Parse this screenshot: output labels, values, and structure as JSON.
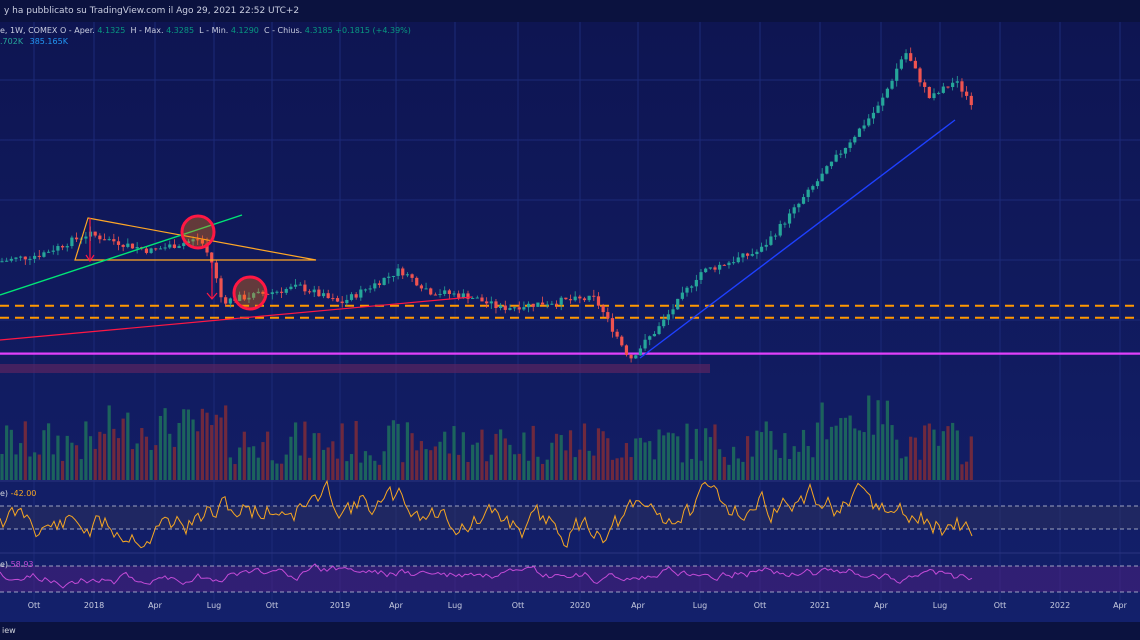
{
  "header": {
    "publish_line": "y ha pubblicato su TradingView.com il Ago 29, 2021 22:52 UTC+2",
    "symbol_line_prefix": "e, 1W, COMEX  O - Aper.",
    "open": "4.1325",
    "high_label": "H - Max.",
    "high": "4.3285",
    "low_label": "L - Min.",
    "low": "4.1290",
    "close_label": "C - Chius.",
    "close": "4.3185",
    "change": "+0.1815 (+4.39%)",
    "volume_a": ".702K",
    "volume_b": "385.165K"
  },
  "oscillators": {
    "osc1_name": "e)",
    "osc1_value": "-42.00",
    "osc2_name": "e)",
    "osc2_value": "58.93"
  },
  "footer": {
    "brand": "iew"
  },
  "colors": {
    "background": "#0f1a5a",
    "bull": "#26a69a",
    "bear": "#ef5350",
    "orange_dashed": "#ff9800",
    "magenta_line": "#e040fb",
    "triangle": "#ffa726",
    "green_trend": "#00e676",
    "red_trend": "#ff1744",
    "blue_trend": "#1e40ff",
    "osc1_line": "#f5a623",
    "osc2_line": "#c24bd6"
  },
  "chart_data": {
    "type": "candlestick",
    "timeframe": "1W",
    "exchange": "COMEX",
    "x_tick_labels": [
      "Ott",
      "2018",
      "Apr",
      "Lug",
      "Ott",
      "2019",
      "Apr",
      "Lug",
      "Ott",
      "2020",
      "Apr",
      "Lug",
      "Ott",
      "2021",
      "Apr",
      "Lug",
      "Ott",
      "2022",
      "Apr"
    ],
    "price_path": [
      {
        "x": 0,
        "y": 2.99
      },
      {
        "x": 40,
        "y": 3.05
      },
      {
        "x": 88,
        "y": 3.22
      },
      {
        "x": 150,
        "y": 3.08
      },
      {
        "x": 200,
        "y": 3.18
      },
      {
        "x": 212,
        "y": 2.98
      },
      {
        "x": 222,
        "y": 2.66
      },
      {
        "x": 250,
        "y": 2.7
      },
      {
        "x": 300,
        "y": 2.78
      },
      {
        "x": 340,
        "y": 2.64
      },
      {
        "x": 400,
        "y": 2.92
      },
      {
        "x": 430,
        "y": 2.74
      },
      {
        "x": 470,
        "y": 2.7
      },
      {
        "x": 500,
        "y": 2.6
      },
      {
        "x": 560,
        "y": 2.66
      },
      {
        "x": 595,
        "y": 2.68
      },
      {
        "x": 630,
        "y": 2.18
      },
      {
        "x": 660,
        "y": 2.45
      },
      {
        "x": 700,
        "y": 2.9
      },
      {
        "x": 760,
        "y": 3.08
      },
      {
        "x": 800,
        "y": 3.48
      },
      {
        "x": 850,
        "y": 4.0
      },
      {
        "x": 880,
        "y": 4.3
      },
      {
        "x": 905,
        "y": 4.75
      },
      {
        "x": 930,
        "y": 4.35
      },
      {
        "x": 955,
        "y": 4.5
      },
      {
        "x": 972,
        "y": 4.32
      }
    ],
    "horizontal_levels": [
      {
        "name": "support-upper",
        "price": 2.62,
        "style": "dashed"
      },
      {
        "name": "support-lower",
        "price": 2.52,
        "style": "dashed"
      },
      {
        "name": "major-support",
        "price": 2.22,
        "style": "solid"
      }
    ],
    "y_scale_note": "price axis not shown; approximate values",
    "oscillator1": {
      "value": -42.0
    },
    "oscillator2": {
      "value": 58.93
    }
  }
}
